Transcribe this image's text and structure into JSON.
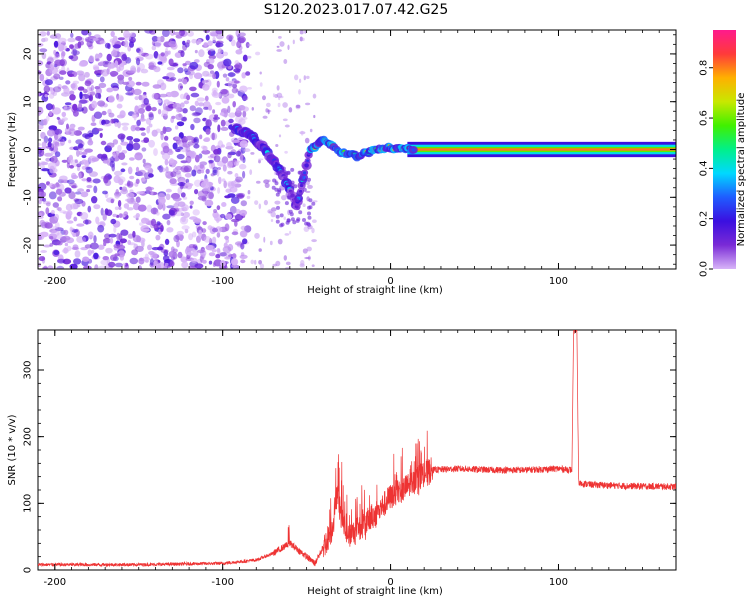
{
  "title": "S120.2023.017.07.42.G25",
  "chart_data": [
    {
      "type": "heatmap",
      "title": "",
      "xlabel": "Height of straight line (km)",
      "ylabel": "Frequency (Hz)",
      "xlim": [
        -210,
        170
      ],
      "ylim": [
        -25,
        25
      ],
      "xticks": [
        -200,
        -100,
        0,
        100
      ],
      "yticks": [
        -20,
        -10,
        0,
        10,
        20
      ],
      "colorbar": {
        "label": "Normalized spectral amplitude",
        "range": [
          0,
          0.95
        ],
        "ticks": [
          "0.0",
          "0.2",
          "0.4",
          "0.6",
          "0.8"
        ],
        "colormap": [
          "#d8b4f8",
          "#7a2bd6",
          "#3b0fe0",
          "#1f5cff",
          "#00d8ff",
          "#00f08a",
          "#40f000",
          "#c8e800",
          "#ffb000",
          "#ff3a3a",
          "#ff1a8c"
        ]
      },
      "features": [
        {
          "name": "noise",
          "x_range": [
            -210,
            -85
          ],
          "f_range": [
            -25,
            25
          ]
        },
        {
          "name": "track",
          "points": [
            [
              -92,
              4.5
            ],
            [
              -82,
              2.5
            ],
            [
              -75,
              0
            ],
            [
              -68,
              -3
            ],
            [
              -62,
              -7
            ],
            [
              -56,
              -12
            ],
            [
              -52,
              -6
            ],
            [
              -48,
              0
            ],
            [
              -40,
              2
            ],
            [
              -30,
              -0.5
            ],
            [
              -20,
              -1.5
            ],
            [
              -10,
              0
            ],
            [
              0,
              0.5
            ],
            [
              10,
              0
            ],
            [
              170,
              0
            ]
          ]
        }
      ]
    },
    {
      "type": "line",
      "title": "",
      "xlabel": "Height of straight line (km)",
      "ylabel": "SNR (10 * v/v)",
      "xlim": [
        -210,
        170
      ],
      "ylim": [
        0,
        360
      ],
      "xticks": [
        -200,
        -100,
        0,
        100
      ],
      "yticks": [
        0,
        100,
        200,
        300
      ],
      "color": "#ee3333",
      "series": [
        {
          "x": [
            -210,
            -150,
            -100,
            -80,
            -70,
            -60,
            -55,
            -45,
            -35,
            -32,
            -30,
            -25,
            -15,
            -5,
            0,
            10,
            20,
            25,
            40,
            60,
            80,
            100,
            108,
            109,
            110,
            111,
            112,
            120,
            140,
            170
          ],
          "y": [
            8,
            8,
            10,
            15,
            25,
            40,
            30,
            10,
            60,
            120,
            80,
            50,
            70,
            95,
            110,
            125,
            145,
            150,
            152,
            150,
            150,
            152,
            150,
            355,
            360,
            358,
            130,
            128,
            126,
            125
          ]
        }
      ]
    }
  ]
}
